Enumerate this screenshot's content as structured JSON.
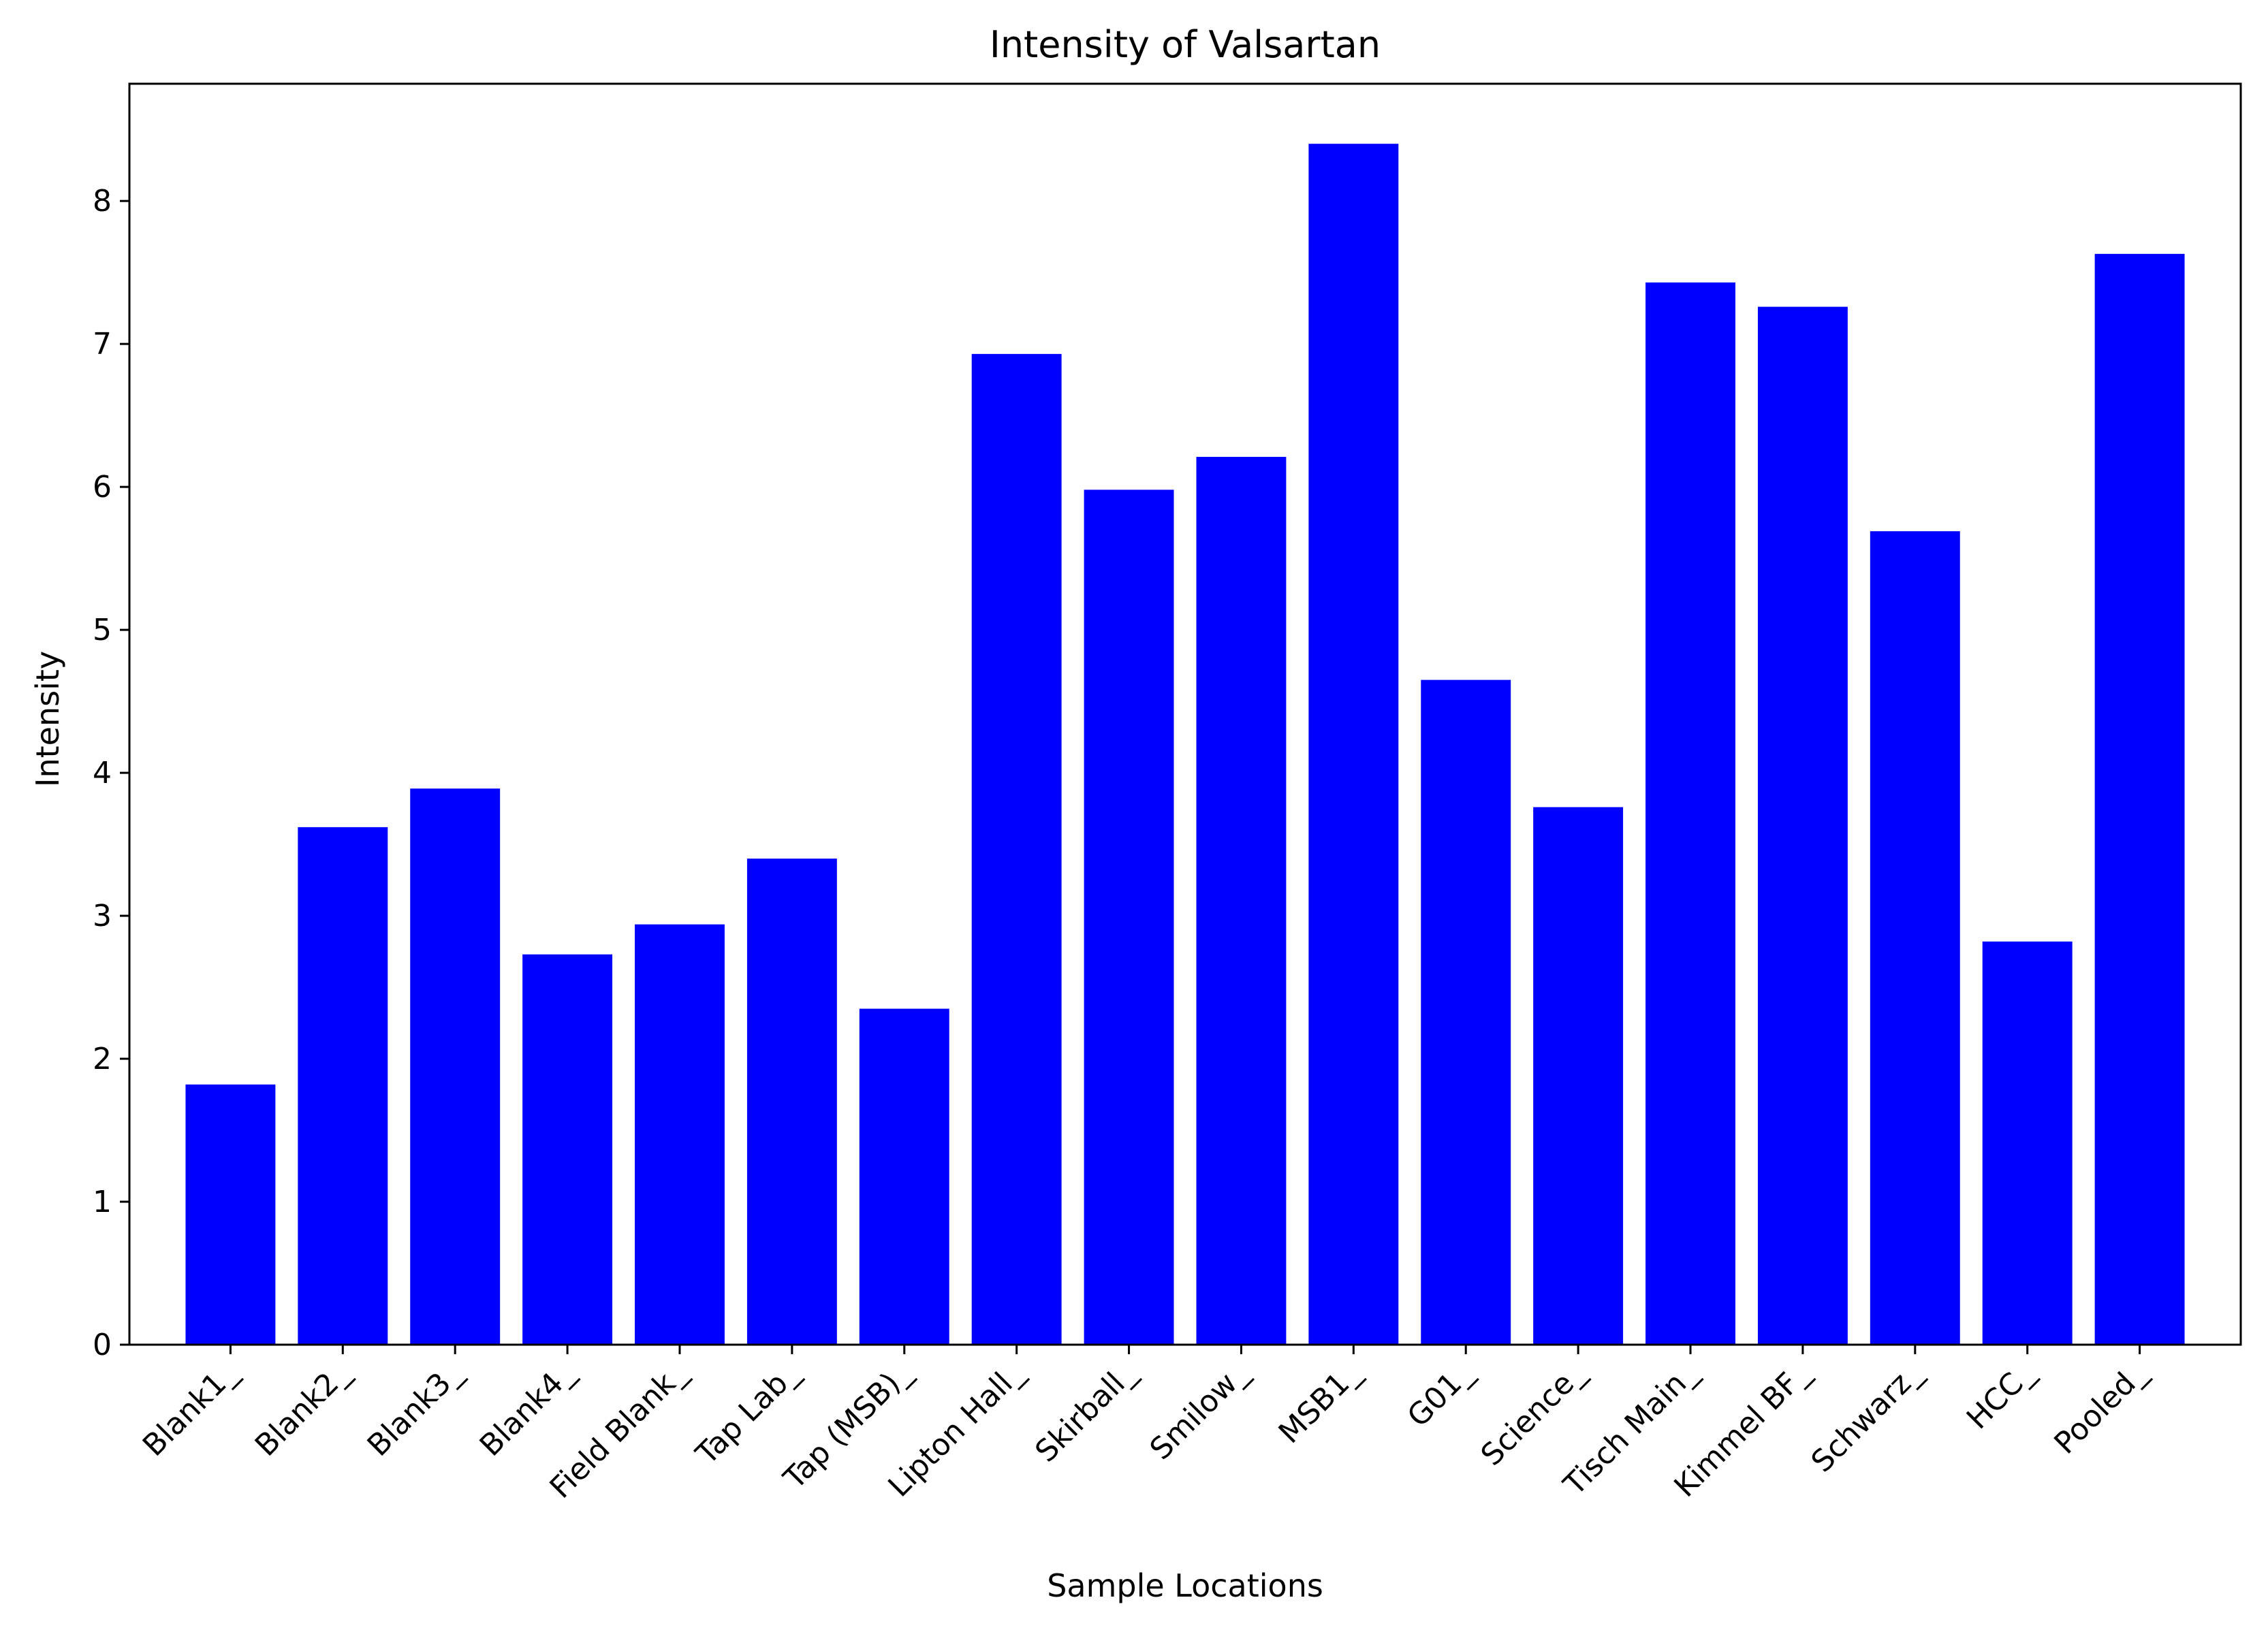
{
  "chart_data": {
    "type": "bar",
    "title": "Intensity of Valsartan",
    "xlabel": "Sample Locations",
    "ylabel": "Intensity",
    "categories": [
      "Blank1_",
      "Blank2_",
      "Blank3_",
      "Blank4_",
      "Field Blank_",
      "Tap Lab_",
      "Tap (MSB)_",
      "Lipton Hall_",
      "Skirball_",
      "Smilow_",
      "MSB1_",
      "G01_",
      "Science_",
      "Tisch Main_",
      "Kimmel BF_",
      "Schwarz_",
      "HCC_",
      "Pooled_"
    ],
    "values": [
      1.82,
      3.62,
      3.89,
      2.73,
      2.94,
      3.4,
      2.35,
      6.93,
      5.98,
      6.21,
      8.4,
      4.65,
      3.76,
      7.43,
      7.26,
      5.69,
      2.82,
      7.63
    ],
    "ylim": [
      0,
      8.82
    ],
    "yticks": [
      0,
      1,
      2,
      3,
      4,
      5,
      6,
      7,
      8
    ],
    "bar_color": "#0000ff",
    "grid": false,
    "legend": "none"
  }
}
